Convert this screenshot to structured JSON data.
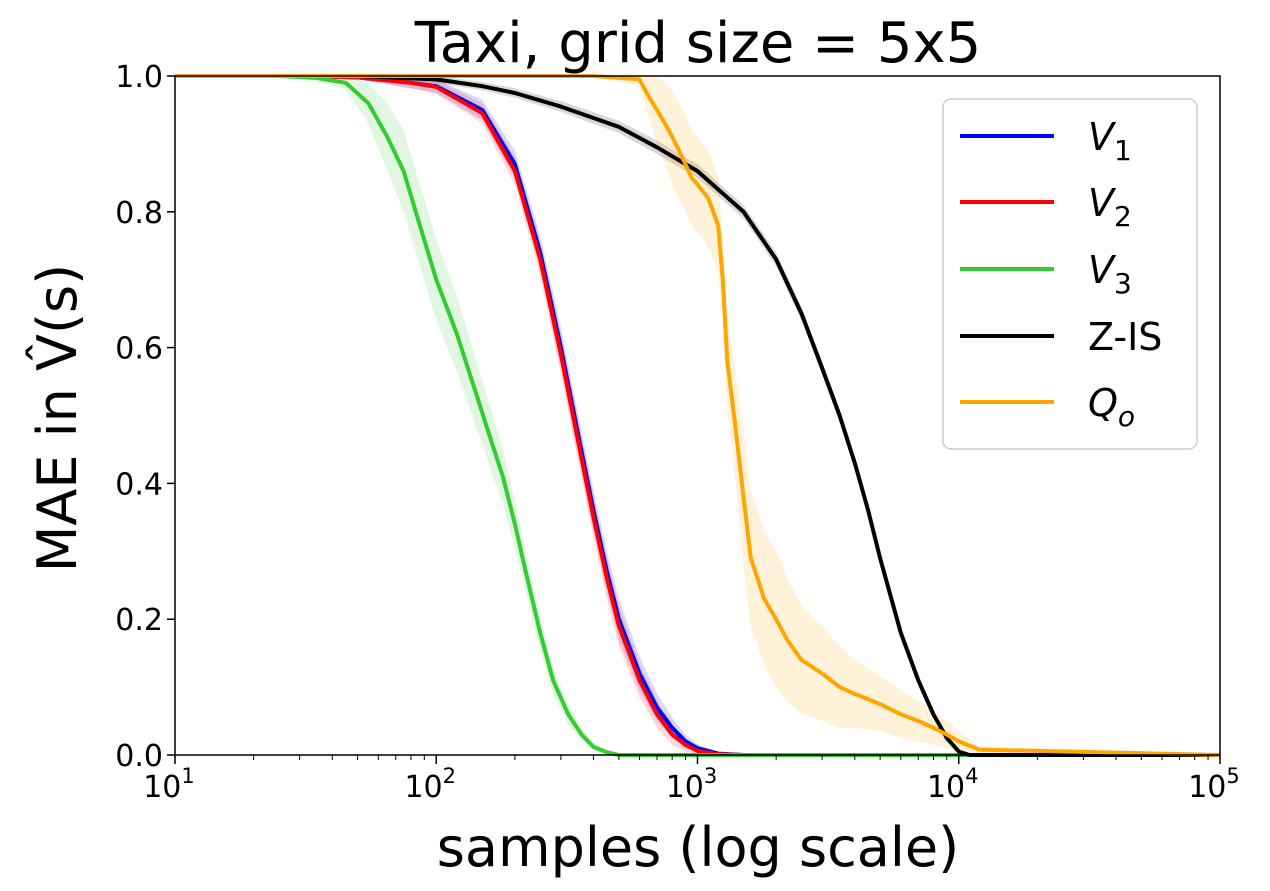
{
  "chart_data": {
    "type": "line",
    "title": "Taxi, grid size = 5x5",
    "xlabel": "samples (log scale)",
    "ylabel": "MAE in V̂(s)",
    "xscale": "log",
    "xlim": [
      10,
      100000
    ],
    "ylim": [
      0.0,
      1.0
    ],
    "x_ticks": [
      {
        "value": 10,
        "base": "10",
        "exp": "1"
      },
      {
        "value": 100,
        "base": "10",
        "exp": "2"
      },
      {
        "value": 1000,
        "base": "10",
        "exp": "3"
      },
      {
        "value": 10000,
        "base": "10",
        "exp": "4"
      },
      {
        "value": 100000,
        "base": "10",
        "exp": "5"
      }
    ],
    "y_ticks": [
      "0.0",
      "0.2",
      "0.4",
      "0.6",
      "0.8",
      "1.0"
    ],
    "grid": false,
    "legend_position": "top-right",
    "series": [
      {
        "name": "V1",
        "label_base": "V",
        "label_sub": "1",
        "italic": true,
        "color": "#0000ff",
        "band_color": "#0000ff",
        "x": [
          10,
          30,
          50,
          80,
          100,
          150,
          200,
          250,
          300,
          350,
          400,
          450,
          500,
          600,
          700,
          800,
          900,
          1000,
          1200,
          1500,
          100000
        ],
        "y": [
          1.0,
          1.0,
          0.998,
          0.99,
          0.985,
          0.95,
          0.87,
          0.74,
          0.6,
          0.47,
          0.36,
          0.27,
          0.2,
          0.12,
          0.07,
          0.04,
          0.02,
          0.01,
          0.002,
          0.0,
          0.0
        ],
        "band": [
          0.0,
          0.0,
          0.003,
          0.008,
          0.01,
          0.015,
          0.02,
          0.025,
          0.03,
          0.03,
          0.03,
          0.03,
          0.03,
          0.025,
          0.02,
          0.015,
          0.01,
          0.006,
          0.002,
          0.0,
          0.0
        ]
      },
      {
        "name": "V2",
        "label_base": "V",
        "label_sub": "2",
        "italic": true,
        "color": "#ff0000",
        "band_color": "#ff0000",
        "x": [
          10,
          30,
          50,
          80,
          100,
          150,
          200,
          250,
          300,
          350,
          400,
          450,
          500,
          600,
          700,
          800,
          900,
          1000,
          1200,
          1500,
          100000
        ],
        "y": [
          1.0,
          1.0,
          0.998,
          0.99,
          0.984,
          0.945,
          0.86,
          0.73,
          0.59,
          0.46,
          0.35,
          0.26,
          0.19,
          0.11,
          0.06,
          0.03,
          0.015,
          0.006,
          0.001,
          0.0,
          0.0
        ],
        "band": [
          0.0,
          0.0,
          0.003,
          0.008,
          0.01,
          0.015,
          0.02,
          0.025,
          0.03,
          0.03,
          0.03,
          0.03,
          0.03,
          0.025,
          0.02,
          0.015,
          0.01,
          0.006,
          0.002,
          0.0,
          0.0
        ]
      },
      {
        "name": "V3",
        "label_base": "V",
        "label_sub": "3",
        "italic": true,
        "color": "#33cc33",
        "band_color": "#33cc33",
        "x": [
          10,
          25,
          35,
          45,
          55,
          65,
          75,
          85,
          100,
          120,
          140,
          160,
          180,
          200,
          220,
          250,
          280,
          320,
          360,
          400,
          450,
          500,
          1000,
          100000
        ],
        "y": [
          1.0,
          1.0,
          0.997,
          0.99,
          0.96,
          0.91,
          0.86,
          0.79,
          0.7,
          0.62,
          0.54,
          0.47,
          0.41,
          0.34,
          0.27,
          0.18,
          0.11,
          0.06,
          0.03,
          0.012,
          0.004,
          0.0,
          0.0,
          0.0
        ],
        "band": [
          0.0,
          0.0,
          0.005,
          0.01,
          0.03,
          0.05,
          0.06,
          0.06,
          0.06,
          0.055,
          0.05,
          0.045,
          0.04,
          0.035,
          0.03,
          0.025,
          0.02,
          0.015,
          0.01,
          0.006,
          0.003,
          0.0,
          0.0,
          0.0
        ]
      },
      {
        "name": "Z-IS",
        "label_base": "Z-IS",
        "label_sub": "",
        "italic": false,
        "color": "#000000",
        "band_color": "#000000",
        "x": [
          10,
          50,
          100,
          150,
          200,
          300,
          500,
          700,
          1000,
          1500,
          2000,
          2500,
          3000,
          3500,
          4000,
          4500,
          5000,
          6000,
          7000,
          8000,
          9000,
          10000,
          11000,
          100000
        ],
        "y": [
          1.0,
          1.0,
          0.995,
          0.985,
          0.975,
          0.955,
          0.925,
          0.895,
          0.86,
          0.8,
          0.73,
          0.65,
          0.57,
          0.5,
          0.43,
          0.36,
          0.29,
          0.18,
          0.11,
          0.06,
          0.025,
          0.005,
          0.0,
          0.0
        ],
        "band": [
          0.0,
          0.003,
          0.005,
          0.006,
          0.007,
          0.008,
          0.009,
          0.01,
          0.01,
          0.01,
          0.01,
          0.01,
          0.01,
          0.01,
          0.01,
          0.01,
          0.01,
          0.009,
          0.008,
          0.006,
          0.004,
          0.002,
          0.0,
          0.0
        ]
      },
      {
        "name": "Qo",
        "label_base": "Q",
        "label_sub": "o",
        "italic": true,
        "color": "#ffa500",
        "band_color": "#ffa500",
        "x": [
          10,
          400,
          600,
          650,
          700,
          750,
          800,
          850,
          900,
          950,
          1000,
          1100,
          1200,
          1250,
          1300,
          1400,
          1500,
          1600,
          1800,
          2000,
          2200,
          2500,
          3000,
          3500,
          4000,
          5000,
          6000,
          7000,
          8000,
          9000,
          10000,
          12000,
          100000
        ],
        "y": [
          1.0,
          1.0,
          0.995,
          0.97,
          0.95,
          0.93,
          0.91,
          0.89,
          0.87,
          0.85,
          0.84,
          0.82,
          0.78,
          0.7,
          0.58,
          0.48,
          0.38,
          0.29,
          0.23,
          0.2,
          0.17,
          0.14,
          0.12,
          0.1,
          0.09,
          0.075,
          0.06,
          0.05,
          0.04,
          0.03,
          0.02,
          0.008,
          0.0
        ],
        "band": [
          0.0,
          0.0,
          0.01,
          0.03,
          0.05,
          0.06,
          0.07,
          0.07,
          0.07,
          0.07,
          0.07,
          0.07,
          0.07,
          0.06,
          0.07,
          0.08,
          0.1,
          0.1,
          0.1,
          0.1,
          0.09,
          0.08,
          0.07,
          0.06,
          0.05,
          0.04,
          0.035,
          0.03,
          0.025,
          0.02,
          0.015,
          0.005,
          0.0
        ]
      }
    ]
  }
}
